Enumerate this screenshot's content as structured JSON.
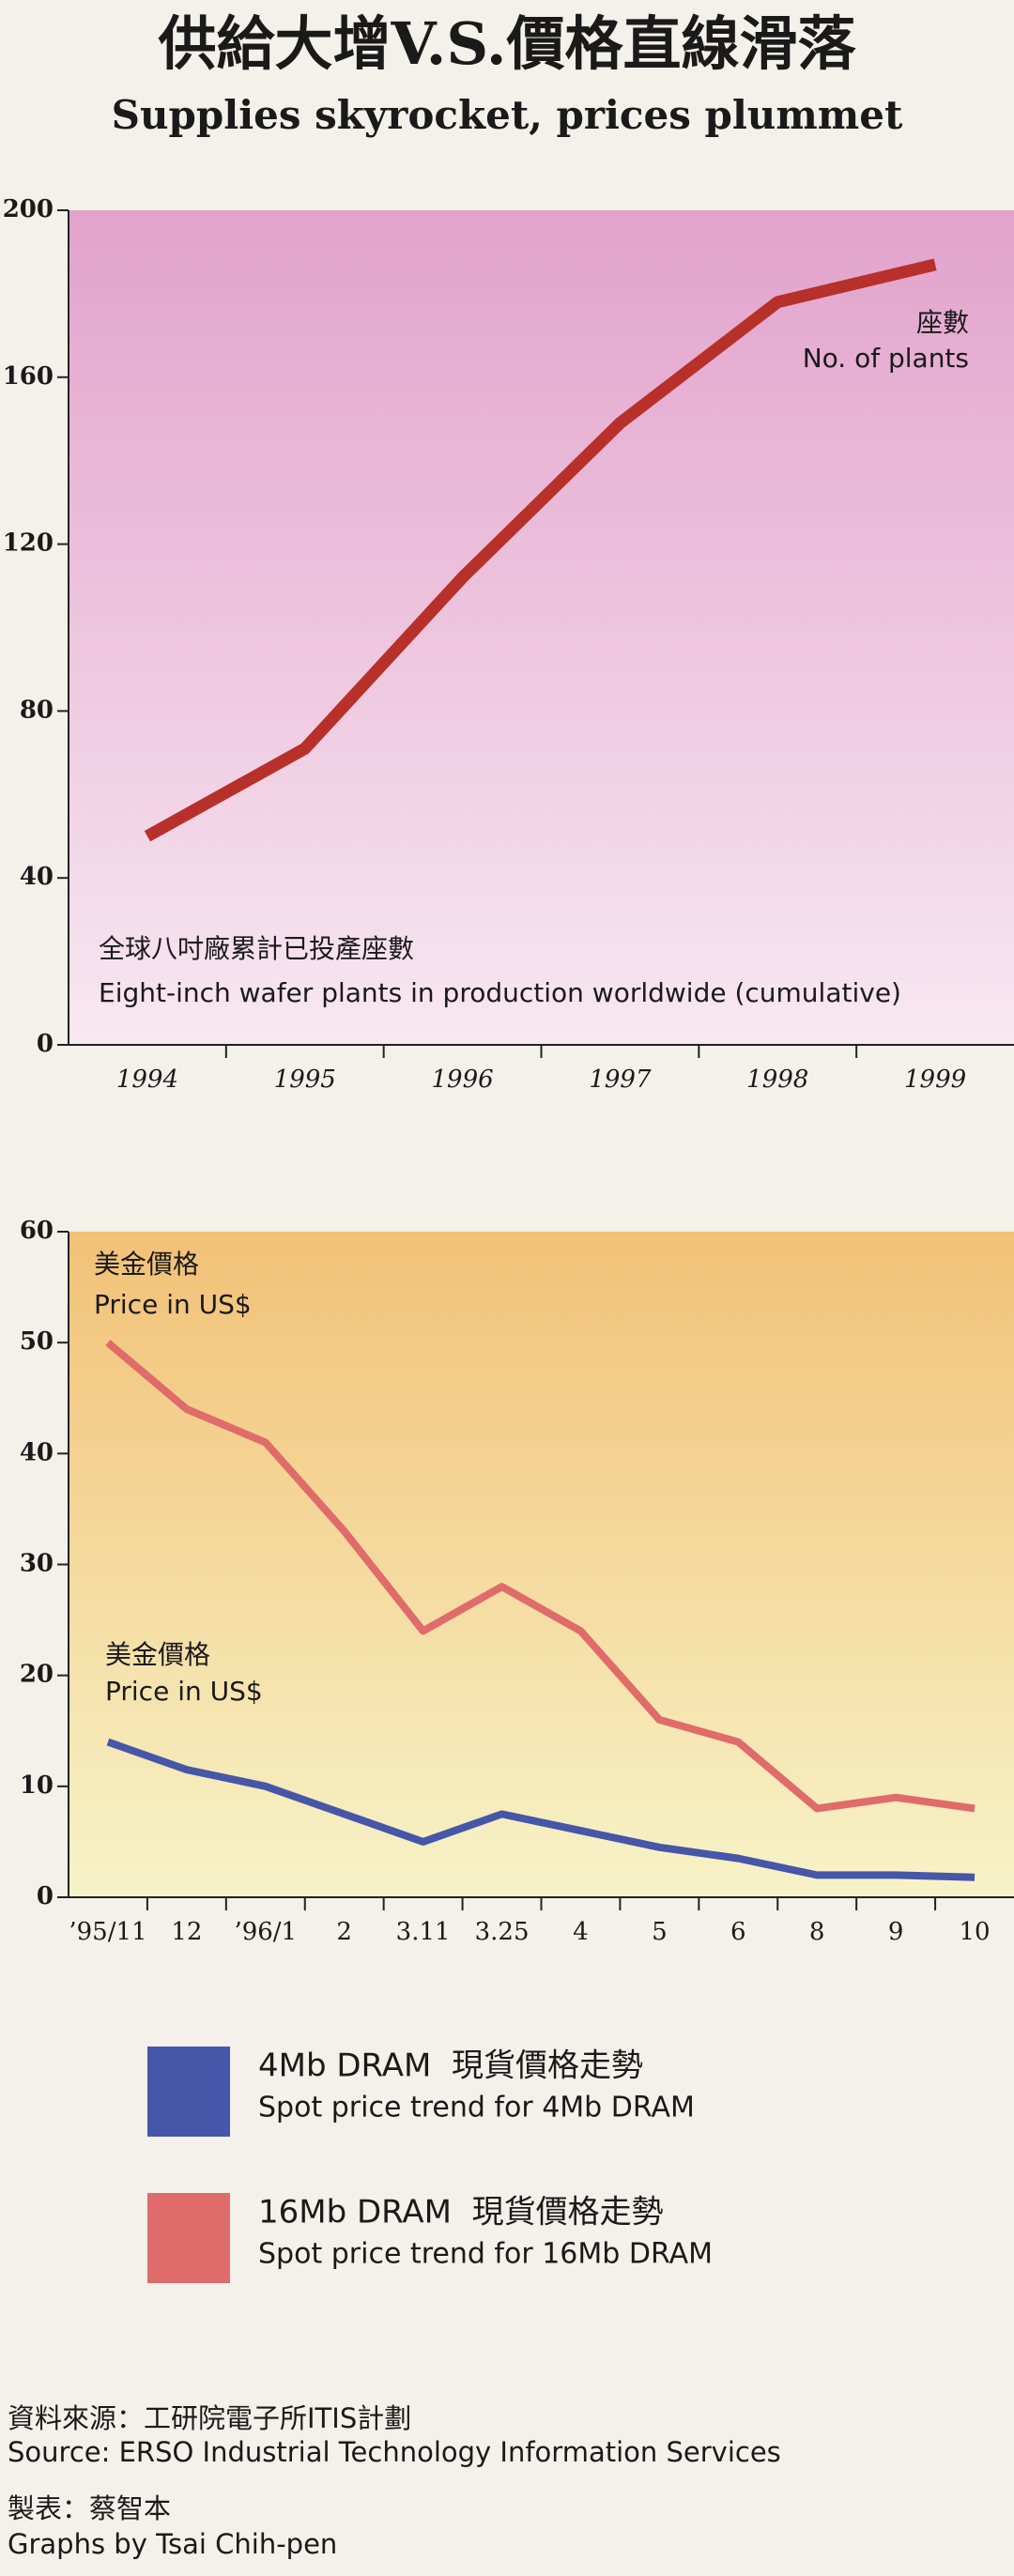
{
  "title": "供給大增V.S.價格直線滑落",
  "subtitle": "Supplies skyrocket, prices plummet",
  "chart_data": [
    {
      "type": "line",
      "categories": [
        "1994",
        "1995",
        "1996",
        "1997",
        "1998",
        "1999"
      ],
      "values": [
        50,
        71,
        112,
        149,
        178,
        187
      ],
      "color": "#b8302a",
      "ylim": [
        0,
        200
      ],
      "yticks": [
        0,
        40,
        80,
        120,
        160,
        200
      ],
      "annotations": [
        "座數",
        "No. of plants",
        "全球八吋廠累計已投產座數",
        "Eight-inch wafer plants in production worldwide (cumulative)"
      ]
    },
    {
      "type": "line",
      "categories": [
        "’95/11",
        "12",
        "’96/1",
        "2",
        "3.11",
        "3.25",
        "4",
        "5",
        "6",
        "8",
        "9",
        "10"
      ],
      "series": [
        {
          "name": "4Mb DRAM  現貨價格走勢",
          "name_en": "Spot price trend for 4Mb DRAM",
          "color": "#4656a8",
          "values": [
            14,
            11.5,
            10,
            7.5,
            5,
            7.5,
            6,
            4.5,
            3.5,
            2,
            2,
            1.8
          ]
        },
        {
          "name": "16Mb DRAM  現貨價格走勢",
          "name_en": "Spot price trend for 16Mb DRAM",
          "color": "#df6b6b",
          "values": [
            50,
            44,
            41,
            33,
            24,
            28,
            24,
            16,
            14,
            8,
            9,
            8
          ]
        }
      ],
      "ylim": [
        0,
        60
      ],
      "yticks": [
        0,
        10,
        20,
        30,
        40,
        50,
        60
      ],
      "annotations": [
        "美金價格",
        "Price in US$",
        "美金價格",
        "Price in US$"
      ]
    }
  ],
  "notes": [
    "資料來源：工研院電子所ITIS計劃",
    "Source: ERSO Industrial Technology Information Services",
    "製表：蔡智本",
    "Graphs by Tsai Chih-pen"
  ]
}
